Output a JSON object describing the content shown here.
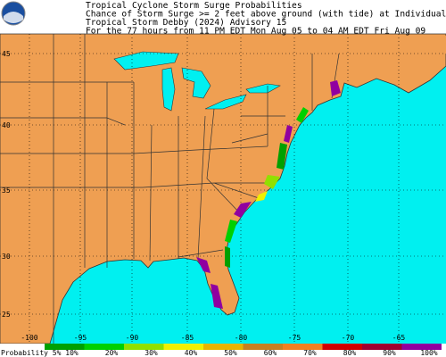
{
  "header": {
    "lines": [
      "Tropical Cyclone Storm Surge Probabilities",
      "Chance of Storm Surge >= 2 feet above ground (with tide) at Individual Locations",
      "Tropical Storm Debby (2024) Advisory 15",
      "For the 77 hours from 11 PM EDT Mon Aug 05 to 04 AM EDT Fri Aug 09"
    ]
  },
  "map": {
    "lat_labels": [
      "45",
      "40",
      "35",
      "30",
      "25"
    ],
    "lon_labels": [
      "-100",
      "-95",
      "-90",
      "-85",
      "-80",
      "-75",
      "-70",
      "-65"
    ]
  },
  "legend": {
    "title": "Probability 5%",
    "labels": [
      "10%",
      "20%",
      "30%",
      "40%",
      "50%",
      "60%",
      "70%",
      "80%",
      "90%",
      "100%"
    ],
    "colors": [
      "#00a000",
      "#00d000",
      "#90e000",
      "#f0f000",
      "#e8b400",
      "#c88020",
      "#f08020",
      "#d00000",
      "#a00030",
      "#9000a0"
    ]
  }
}
